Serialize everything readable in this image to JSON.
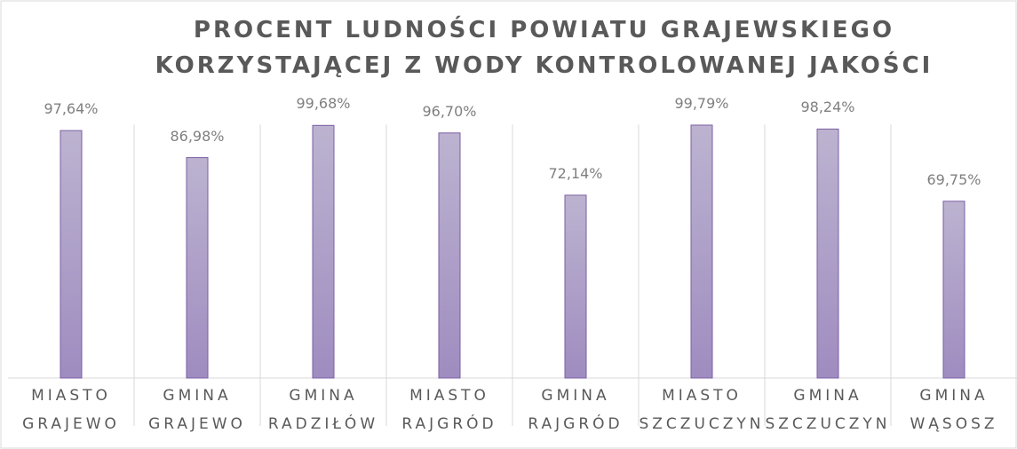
{
  "chart_data": {
    "type": "bar",
    "title": "PROCENT LUDNOŚCI POWIATU GRAJEWSKIEGO\nKORZYSTAJĄCEJ Z WODY KONTROLOWANEJ JAKOŚCI",
    "categories": [
      "MIASTO\nGRAJEWO",
      "GMINA\nGRAJEWO",
      "GMINA\nRADZIŁÓW",
      "MIASTO\nRAJGRÓD",
      "GMINA\nRAJGRÓD",
      "MIASTO\nSZCZUCZYN",
      "GMINA\nSZCZUCZYN",
      "GMINA\nWĄSOSZ"
    ],
    "values": [
      97.64,
      86.98,
      99.68,
      96.7,
      72.14,
      99.79,
      98.24,
      69.75
    ],
    "value_labels": [
      "97,64%",
      "86,98%",
      "99,68%",
      "96,70%",
      "72,14%",
      "99,79%",
      "98,24%",
      "69,75%"
    ],
    "color": "#a796c4",
    "ylim": [
      0,
      100
    ]
  }
}
